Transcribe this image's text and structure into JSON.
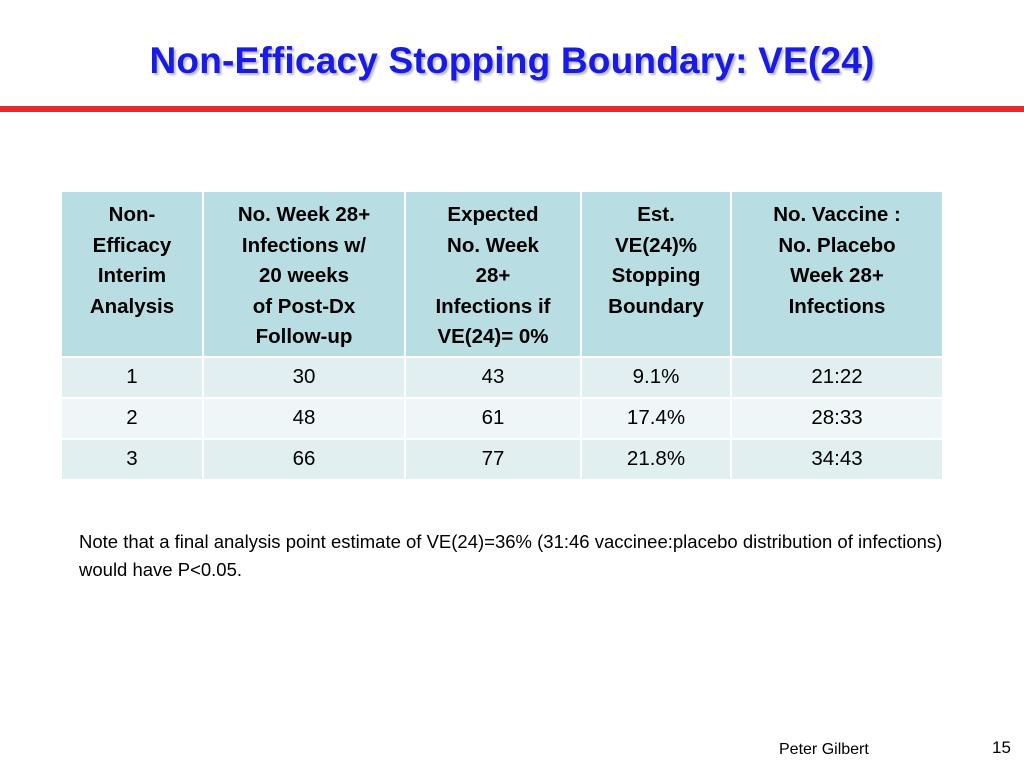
{
  "slide": {
    "title": "Non-Efficacy Stopping Boundary: VE(24)",
    "accent_color": "#e8282a",
    "title_color": "#1a1ae6"
  },
  "table": {
    "header_color": "#b8dde2",
    "columns": [
      "Non-\nEfficacy\nInterim\nAnalysis",
      "No. Week 28+\nInfections w/\n20 weeks\nof Post-Dx\nFollow-up",
      "Expected\nNo. Week\n28+\nInfections if\nVE(24)=  0%",
      "Est.\nVE(24)%\nStopping\nBoundary",
      "No. Vaccine :\nNo. Placebo\nWeek 28+\nInfections"
    ],
    "rows": [
      [
        "1",
        "30",
        "43",
        "9.1%",
        "21:22"
      ],
      [
        "2",
        "48",
        "61",
        "17.4%",
        "28:33"
      ],
      [
        "3",
        "66",
        "77",
        "21.8%",
        "34:43"
      ]
    ]
  },
  "note": {
    "text": "Note that a final analysis point estimate of VE(24)=36% (31:46 vaccinee:placebo distribution of infections) would have P<0.05."
  },
  "footer": {
    "author": "Peter Gilbert",
    "page_number": "15"
  }
}
